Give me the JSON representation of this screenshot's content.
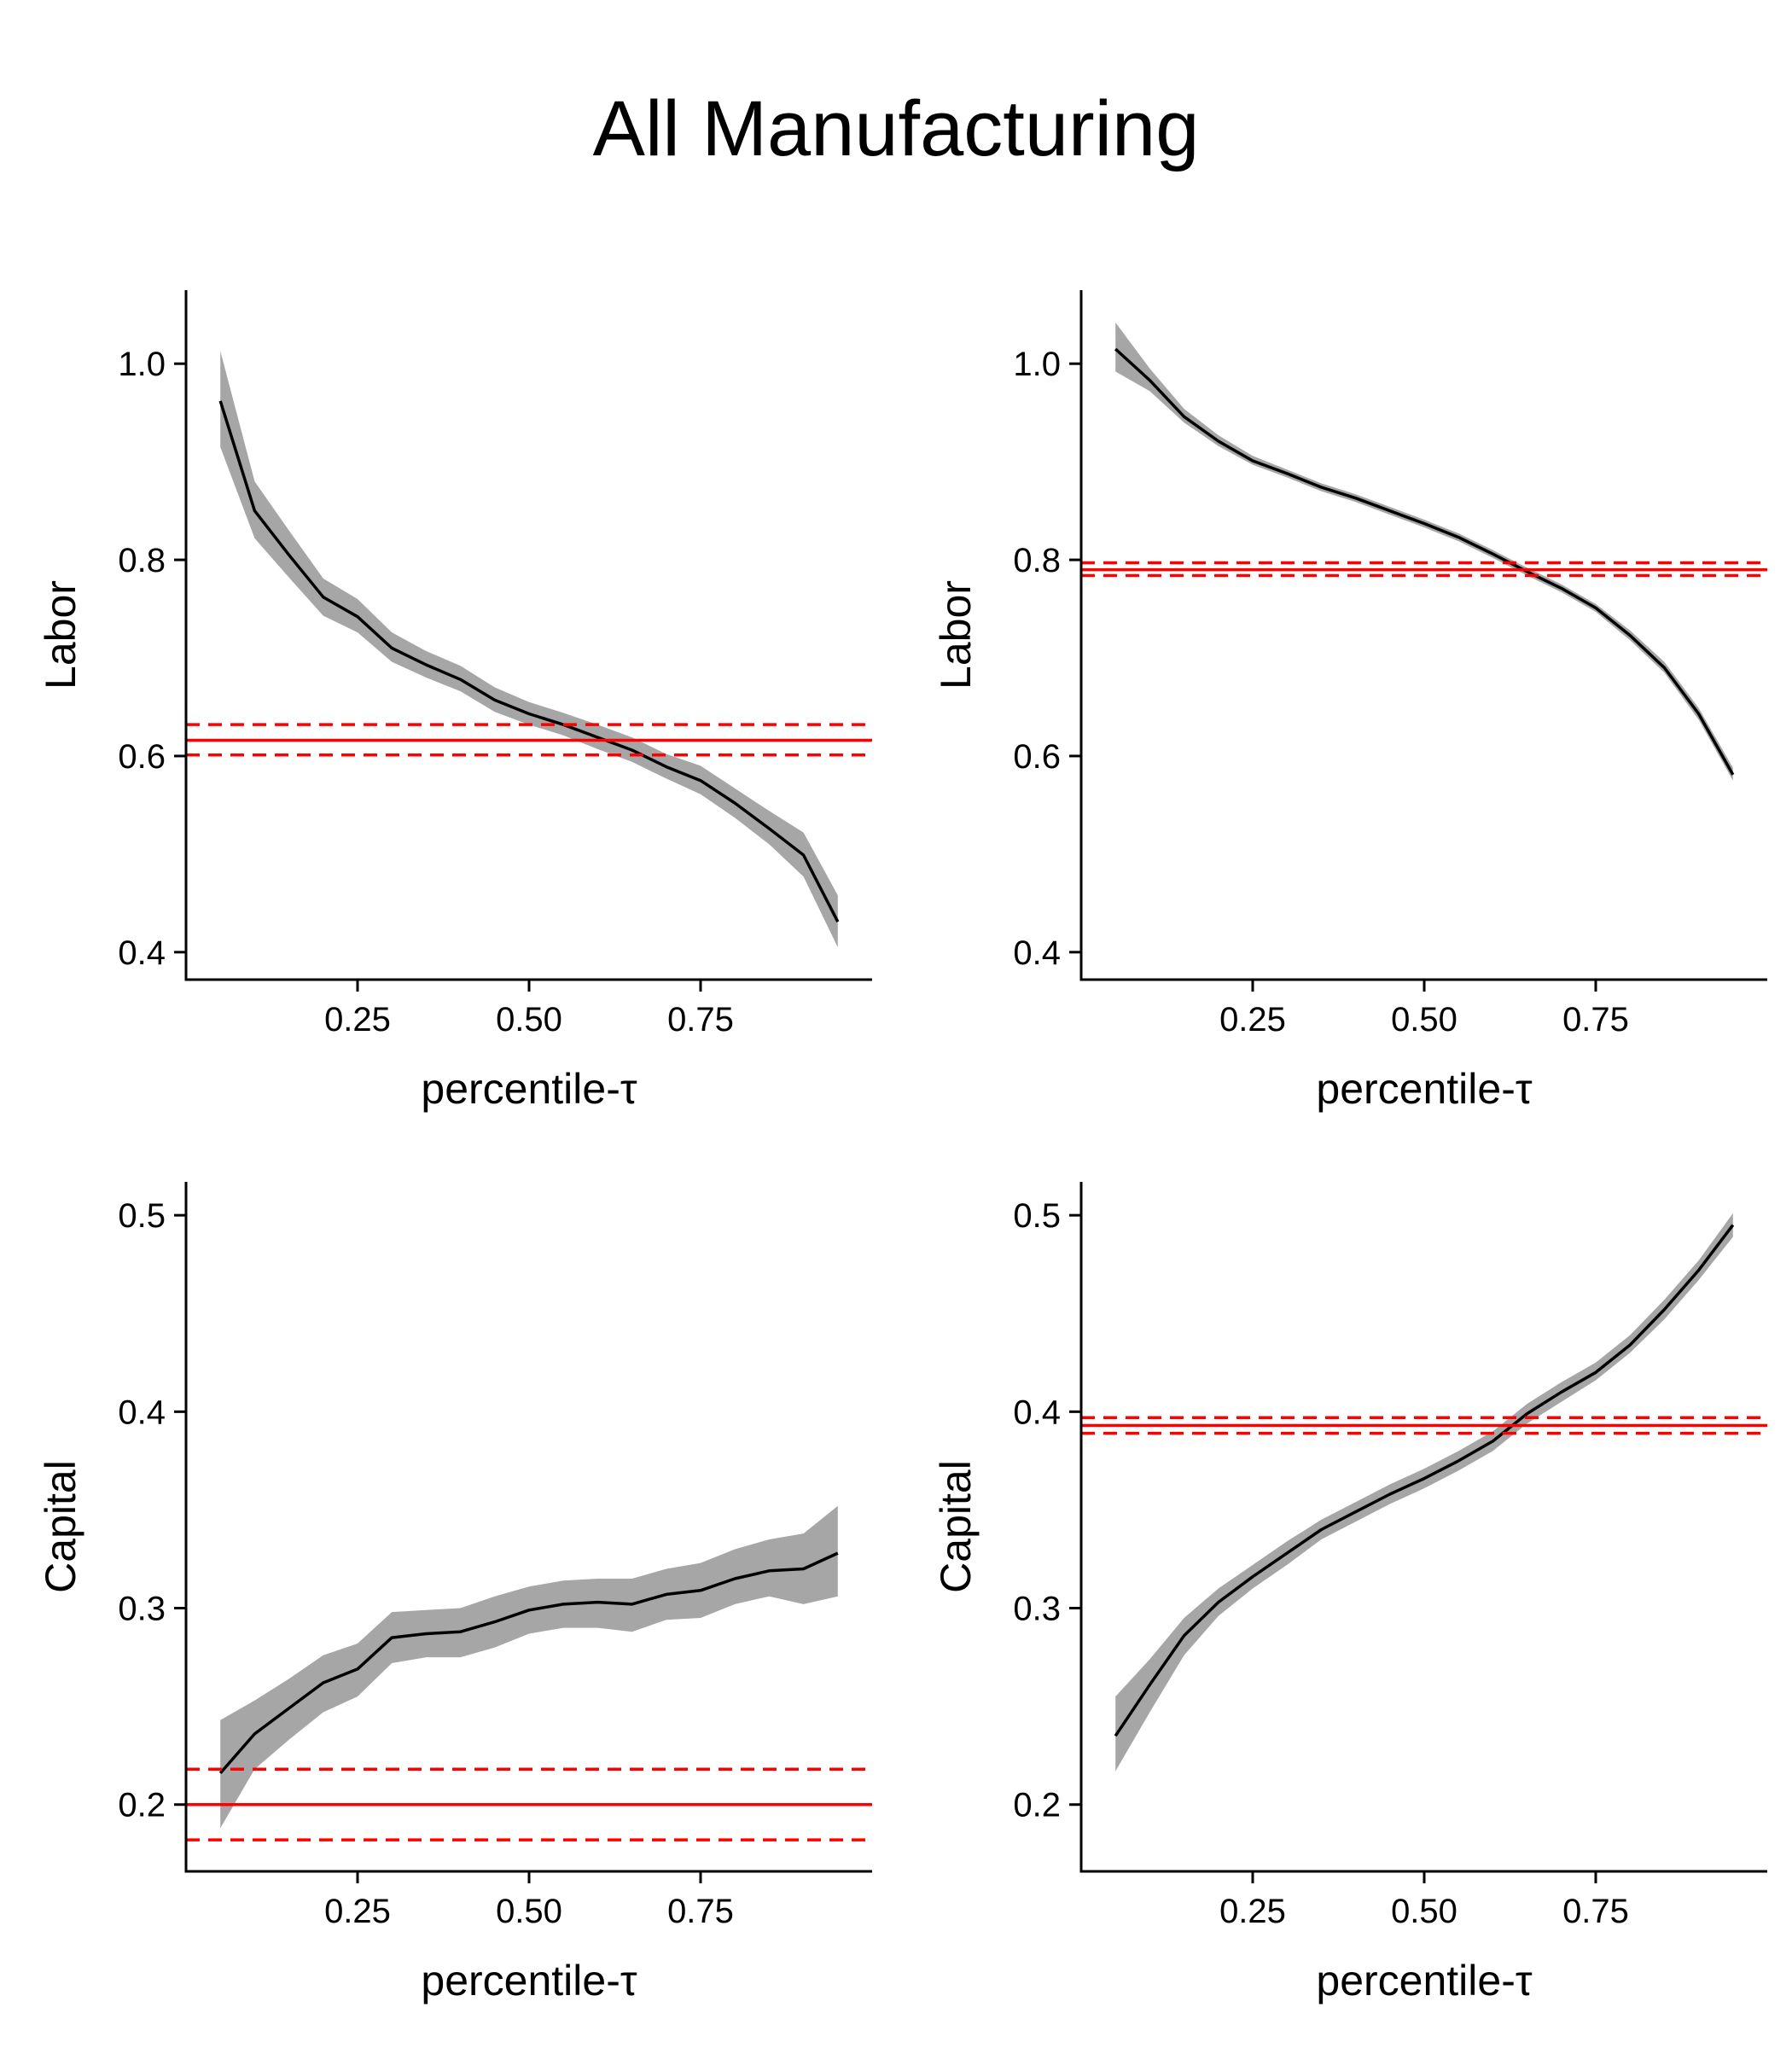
{
  "title": "All Manufacturing",
  "colors": {
    "line": "#000000",
    "band": "#a6a6a6",
    "reference": "#ff0000",
    "axis": "#000000"
  },
  "chart_data": [
    {
      "type": "line",
      "xlabel": "percentile-τ",
      "ylabel": "Labor",
      "xlim": [
        0.0,
        1.0
      ],
      "ylim": [
        0.372,
        1.075
      ],
      "xticks": [
        0.25,
        0.5,
        0.75
      ],
      "xtick_labels": [
        "0.25",
        "0.50",
        "0.75"
      ],
      "yticks": [
        0.4,
        0.6,
        0.8,
        1.0
      ],
      "ytick_labels": [
        "0.4",
        "0.6",
        "0.8",
        "1.0"
      ],
      "grid": false,
      "series": [
        {
          "x": [
            0.05,
            0.1,
            0.15,
            0.2,
            0.25,
            0.3,
            0.35,
            0.4,
            0.45,
            0.5,
            0.55,
            0.6,
            0.65,
            0.7,
            0.75,
            0.8,
            0.85,
            0.9,
            0.95
          ],
          "y": [
            0.962,
            0.85,
            0.805,
            0.762,
            0.742,
            0.71,
            0.693,
            0.678,
            0.657,
            0.643,
            0.632,
            0.619,
            0.606,
            0.589,
            0.575,
            0.552,
            0.526,
            0.499,
            0.431
          ],
          "lower": [
            0.915,
            0.822,
            0.782,
            0.743,
            0.726,
            0.696,
            0.68,
            0.666,
            0.645,
            0.632,
            0.621,
            0.607,
            0.594,
            0.577,
            0.561,
            0.537,
            0.51,
            0.477,
            0.405
          ],
          "upper": [
            1.013,
            0.88,
            0.83,
            0.781,
            0.76,
            0.726,
            0.707,
            0.692,
            0.67,
            0.655,
            0.644,
            0.632,
            0.619,
            0.602,
            0.59,
            0.567,
            0.544,
            0.522,
            0.458
          ]
        }
      ],
      "reference": {
        "value": 0.616,
        "lower": 0.601,
        "upper": 0.632
      }
    },
    {
      "type": "line",
      "xlabel": "percentile-τ",
      "ylabel": "Labor",
      "xlim": [
        0.0,
        1.0
      ],
      "ylim": [
        0.372,
        1.075
      ],
      "xticks": [
        0.25,
        0.5,
        0.75
      ],
      "xtick_labels": [
        "0.25",
        "0.50",
        "0.75"
      ],
      "yticks": [
        0.4,
        0.6,
        0.8,
        1.0
      ],
      "ytick_labels": [
        "0.4",
        "0.6",
        "0.8",
        "1.0"
      ],
      "grid": false,
      "series": [
        {
          "x": [
            0.05,
            0.1,
            0.15,
            0.2,
            0.25,
            0.3,
            0.35,
            0.4,
            0.45,
            0.5,
            0.55,
            0.6,
            0.65,
            0.7,
            0.75,
            0.8,
            0.85,
            0.9,
            0.95
          ],
          "y": [
            1.015,
            0.983,
            0.946,
            0.921,
            0.901,
            0.888,
            0.874,
            0.863,
            0.85,
            0.837,
            0.823,
            0.806,
            0.788,
            0.771,
            0.751,
            0.723,
            0.69,
            0.643,
            0.581
          ],
          "lower": [
            0.992,
            0.972,
            0.94,
            0.916,
            0.897,
            0.884,
            0.87,
            0.859,
            0.846,
            0.833,
            0.819,
            0.802,
            0.784,
            0.767,
            0.747,
            0.718,
            0.685,
            0.637,
            0.575
          ],
          "upper": [
            1.042,
            0.995,
            0.954,
            0.927,
            0.906,
            0.892,
            0.878,
            0.867,
            0.854,
            0.841,
            0.827,
            0.81,
            0.792,
            0.775,
            0.755,
            0.728,
            0.696,
            0.649,
            0.588
          ]
        }
      ],
      "reference": {
        "value": 0.79,
        "lower": 0.784,
        "upper": 0.797
      }
    },
    {
      "type": "line",
      "xlabel": "percentile-τ",
      "ylabel": "Capital",
      "xlim": [
        0.0,
        1.0
      ],
      "ylim": [
        0.166,
        0.517
      ],
      "xticks": [
        0.25,
        0.5,
        0.75
      ],
      "xtick_labels": [
        "0.25",
        "0.50",
        "0.75"
      ],
      "yticks": [
        0.2,
        0.3,
        0.4,
        0.5
      ],
      "ytick_labels": [
        "0.2",
        "0.3",
        "0.4",
        "0.5"
      ],
      "grid": false,
      "series": [
        {
          "x": [
            0.05,
            0.1,
            0.15,
            0.2,
            0.25,
            0.3,
            0.35,
            0.4,
            0.45,
            0.5,
            0.55,
            0.6,
            0.65,
            0.7,
            0.75,
            0.8,
            0.85,
            0.9,
            0.95
          ],
          "y": [
            0.216,
            0.236,
            0.249,
            0.262,
            0.269,
            0.285,
            0.287,
            0.288,
            0.293,
            0.299,
            0.302,
            0.303,
            0.302,
            0.307,
            0.309,
            0.315,
            0.319,
            0.32,
            0.328
          ],
          "lower": [
            0.188,
            0.218,
            0.233,
            0.247,
            0.255,
            0.272,
            0.275,
            0.275,
            0.28,
            0.287,
            0.29,
            0.29,
            0.288,
            0.294,
            0.295,
            0.302,
            0.306,
            0.302,
            0.306
          ],
          "upper": [
            0.243,
            0.253,
            0.264,
            0.276,
            0.282,
            0.298,
            0.299,
            0.3,
            0.306,
            0.311,
            0.314,
            0.315,
            0.315,
            0.32,
            0.323,
            0.33,
            0.335,
            0.338,
            0.352
          ]
        }
      ],
      "reference": {
        "value": 0.2,
        "lower": 0.182,
        "upper": 0.218
      }
    },
    {
      "type": "line",
      "xlabel": "percentile-τ",
      "ylabel": "Capital",
      "xlim": [
        0.0,
        1.0
      ],
      "ylim": [
        0.166,
        0.517
      ],
      "xticks": [
        0.25,
        0.5,
        0.75
      ],
      "xtick_labels": [
        "0.25",
        "0.50",
        "0.75"
      ],
      "yticks": [
        0.2,
        0.3,
        0.4,
        0.5
      ],
      "ytick_labels": [
        "0.2",
        "0.3",
        "0.4",
        "0.5"
      ],
      "grid": false,
      "series": [
        {
          "x": [
            0.05,
            0.1,
            0.15,
            0.2,
            0.25,
            0.3,
            0.35,
            0.4,
            0.45,
            0.5,
            0.55,
            0.6,
            0.65,
            0.7,
            0.75,
            0.8,
            0.85,
            0.9,
            0.95
          ],
          "y": [
            0.235,
            0.261,
            0.286,
            0.303,
            0.316,
            0.328,
            0.34,
            0.349,
            0.358,
            0.366,
            0.375,
            0.385,
            0.399,
            0.41,
            0.42,
            0.434,
            0.452,
            0.472,
            0.495
          ],
          "lower": [
            0.217,
            0.247,
            0.276,
            0.296,
            0.31,
            0.322,
            0.335,
            0.344,
            0.353,
            0.361,
            0.37,
            0.38,
            0.394,
            0.405,
            0.416,
            0.43,
            0.447,
            0.467,
            0.489
          ],
          "upper": [
            0.255,
            0.274,
            0.295,
            0.31,
            0.322,
            0.334,
            0.345,
            0.354,
            0.363,
            0.371,
            0.38,
            0.39,
            0.404,
            0.415,
            0.425,
            0.439,
            0.457,
            0.477,
            0.501
          ]
        }
      ],
      "reference": {
        "value": 0.393,
        "lower": 0.389,
        "upper": 0.397
      }
    }
  ]
}
